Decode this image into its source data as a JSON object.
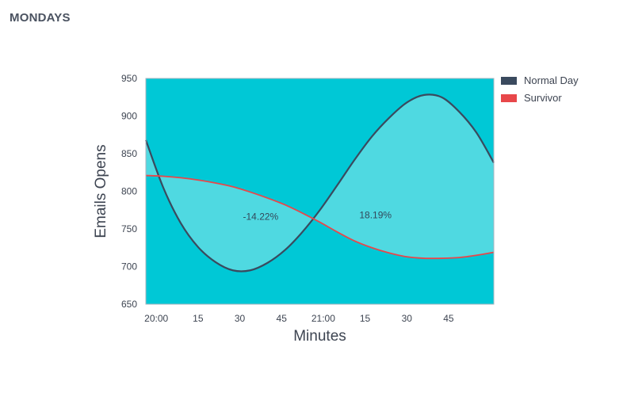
{
  "page": {
    "title": "MONDAYS"
  },
  "chart_data": {
    "type": "line",
    "title": "MONDAYS",
    "xlabel": "Minutes",
    "ylabel": "Emails Opens",
    "xlim": [
      0,
      100
    ],
    "ylim": [
      650,
      950
    ],
    "x_ticks": [
      {
        "x": 3,
        "label": "20:00"
      },
      {
        "x": 15,
        "label": "15"
      },
      {
        "x": 27,
        "label": "30"
      },
      {
        "x": 39,
        "label": "45"
      },
      {
        "x": 51,
        "label": "21:00"
      },
      {
        "x": 63,
        "label": "15"
      },
      {
        "x": 75,
        "label": "30"
      },
      {
        "x": 87,
        "label": "45"
      }
    ],
    "y_ticks": [
      650,
      700,
      750,
      800,
      850,
      900,
      950
    ],
    "grid": false,
    "legend_position": "right",
    "background": "#00c8d6",
    "fill_between_color": "#4fd9e1",
    "series": [
      {
        "name": "Normal Day",
        "color": "#3a4a5e",
        "x": [
          0,
          5,
          10,
          15,
          20,
          25,
          30,
          35,
          40,
          45,
          50,
          55,
          60,
          65,
          70,
          75,
          80,
          85,
          90,
          95,
          100
        ],
        "y": [
          868,
          805,
          758,
          726,
          706,
          695,
          695,
          705,
          722,
          746,
          775,
          808,
          842,
          873,
          898,
          918,
          928,
          925,
          906,
          878,
          838
        ]
      },
      {
        "name": "Survivor",
        "color": "#e8474a",
        "x": [
          0,
          5,
          10,
          15,
          20,
          25,
          30,
          35,
          40,
          45,
          50,
          55,
          60,
          65,
          70,
          75,
          80,
          85,
          90,
          95,
          100
        ],
        "y": [
          821,
          820,
          818,
          815,
          811,
          806,
          799,
          791,
          782,
          771,
          759,
          746,
          734,
          725,
          718,
          713,
          711,
          711,
          712,
          715,
          719
        ]
      }
    ],
    "annotations": [
      {
        "text": "-14.22%",
        "x": 33,
        "y": 762
      },
      {
        "text": "18.19%",
        "x": 66,
        "y": 764
      }
    ]
  }
}
